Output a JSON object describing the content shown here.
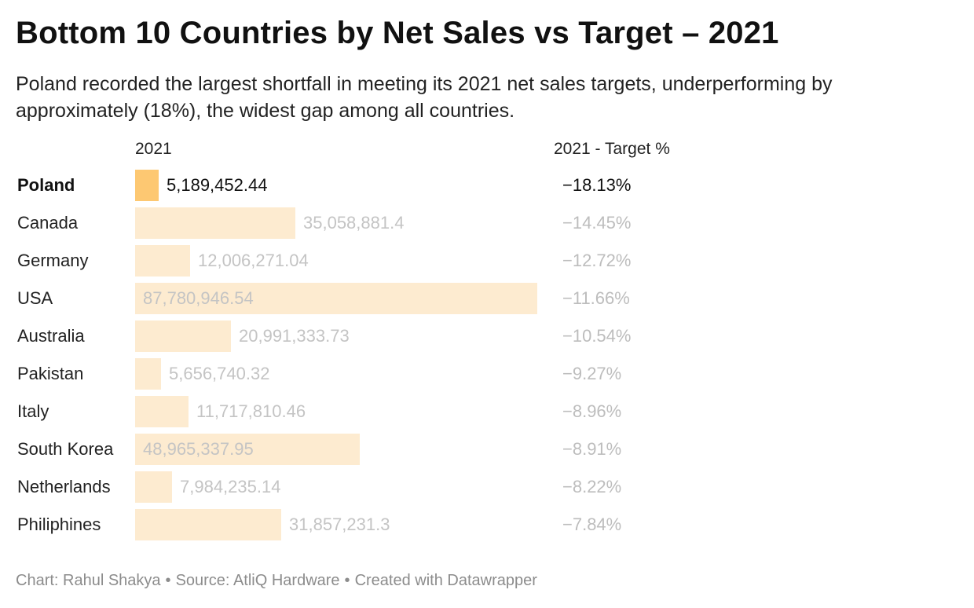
{
  "title": "Bottom 10 Countries by Net Sales vs Target – 2021",
  "subtitle": "Poland recorded the largest shortfall in meeting its 2021 net sales targets, underperforming by approximately (18%), the widest gap among all countries.",
  "columns": {
    "value": "2021",
    "pct": "2021 - Target %"
  },
  "colors": {
    "highlight_bar": "#fdc872",
    "faded_bar": "#fdebd0",
    "faded_text": "#c4c4c4"
  },
  "chart_data": {
    "type": "bar",
    "orientation": "horizontal",
    "title": "Bottom 10 Countries by Net Sales vs Target – 2021",
    "categories": [
      "Poland",
      "Canada",
      "Germany",
      "USA",
      "Australia",
      "Pakistan",
      "Italy",
      "South Korea",
      "Netherlands",
      "Philiphines"
    ],
    "series": [
      {
        "name": "2021",
        "values": [
          5189452.44,
          35058881.4,
          12006271.04,
          87780946.54,
          20991333.73,
          5656740.32,
          11717810.46,
          48965337.95,
          7984235.14,
          31857231.3
        ],
        "labels": [
          "5,189,452.44",
          "35,058,881.4",
          "12,006,271.04",
          "87,780,946.54",
          "20,991,333.73",
          "5,656,740.32",
          "11,717,810.46",
          "48,965,337.95",
          "7,984,235.14",
          "31,857,231.3"
        ]
      },
      {
        "name": "2021 - Target %",
        "values": [
          -18.13,
          -14.45,
          -12.72,
          -11.66,
          -10.54,
          -9.27,
          -8.96,
          -8.91,
          -8.22,
          -7.84
        ],
        "labels": [
          "−18.13%",
          "−14.45%",
          "−12.72%",
          "−11.66%",
          "−10.54%",
          "−9.27%",
          "−8.96%",
          "−8.91%",
          "−8.22%",
          "−7.84%"
        ]
      }
    ],
    "highlighted": "Poland",
    "xlim": [
      0,
      87780946.54
    ]
  },
  "footer": {
    "chart_by": "Chart: Rahul Shakya",
    "source": "Source: AtliQ Hardware",
    "created_with": "Created with Datawrapper",
    "separator": "•"
  }
}
